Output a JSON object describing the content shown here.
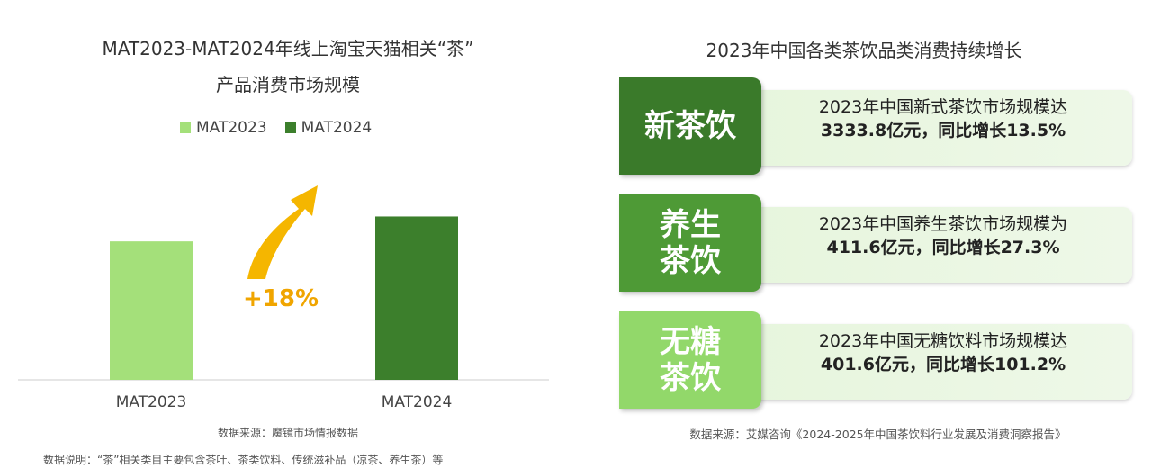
{
  "left_chart": {
    "title_line1": "MAT2023-MAT2024年线上淘宝天猫相关“茶”",
    "title_line2": "产品消费市场规模",
    "growth_label": "+18%",
    "source": "数据来源：魔镜市场情报数据",
    "note": "数据说明：“茶”相关类目主要包含茶叶、茶类饮料、传统滋补品（凉茶、养生茶）等"
  },
  "chart_data": {
    "type": "bar",
    "categories": [
      "MAT2023",
      "MAT2024"
    ],
    "series": [
      {
        "name": "MAT2023",
        "values": [
          1.0,
          null
        ],
        "color": "#a4e07a"
      },
      {
        "name": "MAT2024",
        "values": [
          null,
          1.18
        ],
        "color": "#3c7f2c"
      }
    ],
    "title": "MAT2023-MAT2024年线上淘宝天猫相关“茶”产品消费市场规模",
    "annotation": "+18%",
    "ylim": [
      0,
      1.3
    ],
    "grid": false,
    "legend_position": "top"
  },
  "right_panel": {
    "title": "2023年中国各类茶饮品类消费持续增长",
    "source": "数据来源：艾媒咨询《2024-2025年中国茶饮料行业发展及消费洞察报告》",
    "cards": [
      {
        "label": "新茶饮",
        "line1": "2023年中国新式茶饮市场规模达",
        "line2": "3333.8亿元，同比增长13.5%",
        "color": "#3a7a2a"
      },
      {
        "label": "养生茶饮",
        "line1": "2023年中国养生茶饮市场规模为",
        "line2": "411.6亿元，同比增长27.3%",
        "color": "#4e9a36"
      },
      {
        "label": "无糖茶饮",
        "line1": "2023年中国无糖饮料市场规模达",
        "line2": "401.6亿元，同比增长101.2%",
        "color": "#92d86a"
      }
    ]
  },
  "colors": {
    "arrow": "#f5b600",
    "growth_text": "#f0a500",
    "axis": "#cccccc"
  }
}
